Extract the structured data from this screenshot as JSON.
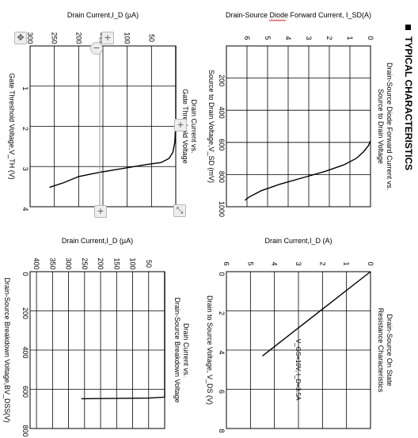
{
  "section_title": "TYPICAL CHARACTERISTICS",
  "colors": {
    "ink": "#000000",
    "grid": "#000000",
    "toolbar_bg": "#eeeeee",
    "cursor_line": "#9a9a9a",
    "squiggle": "#d23a3a"
  },
  "viewer": {
    "orientation": "rotated 90° clockwise",
    "tools": [
      {
        "id": "pan",
        "icon": "move-icon"
      },
      {
        "id": "zoom_in_top",
        "icon": "plus-icon"
      },
      {
        "id": "zoom_out_top",
        "icon": "minus-icon"
      },
      {
        "id": "zoom_in_mid",
        "icon": "plus-icon"
      },
      {
        "id": "zoom_in_bottom",
        "icon": "plus-icon"
      },
      {
        "id": "expand",
        "icon": "expand-icon"
      }
    ]
  },
  "chart_data": [
    {
      "id": "diode",
      "type": "line",
      "title": "Drain-Source Diode Forward Current vs. Source to Drain Voltage",
      "xlabel": "Source to Drain Voltage,V_SD (mV)",
      "ylabel": "Drain-Source Diode Forward Current, I_SD(A)",
      "xlim": [
        0,
        1000
      ],
      "ylim": [
        0,
        7
      ],
      "xticks": [
        200,
        400,
        600,
        800,
        1000
      ],
      "yticks": [
        0,
        1,
        2,
        3,
        4,
        5,
        6
      ],
      "grid": true,
      "series": [
        {
          "x": [
            590,
            620,
            660,
            700,
            740,
            780,
            820,
            860,
            900,
            940,
            960
          ],
          "y": [
            0.0,
            0.1,
            0.35,
            0.7,
            1.3,
            2.2,
            3.3,
            4.4,
            5.3,
            5.9,
            6.1
          ]
        }
      ]
    },
    {
      "id": "on_state",
      "type": "line",
      "title": "Drain-Source On State Resistance Characteristics",
      "xlabel": "Drain to Source Voltage, V_DS (V)",
      "ylabel": "Drain Current,I_D (A)",
      "xlim": [
        0,
        8
      ],
      "ylim": [
        0,
        6
      ],
      "xticks": [
        0,
        2,
        4,
        6,
        8
      ],
      "yticks": [
        0,
        1,
        2,
        3,
        4,
        5,
        6
      ],
      "grid": true,
      "annotation": "V_GS=10V, I_D=3.5A",
      "series": [
        {
          "x": [
            0,
            4.3
          ],
          "y": [
            0,
            4.5
          ]
        }
      ]
    },
    {
      "id": "threshold",
      "type": "line",
      "title": "Drain Current vs. Gate Threshold Voltage",
      "xlabel": "Gate Threshold Voltage,V_TH (V)",
      "ylabel": "Drain Current,I_D (µA)",
      "xlim": [
        0,
        4
      ],
      "ylim": [
        0,
        300
      ],
      "xticks": [
        1,
        2,
        3,
        4
      ],
      "yticks": [
        50,
        100,
        150,
        200,
        250,
        300
      ],
      "grid": true,
      "series": [
        {
          "x": [
            0,
            1.9,
            2.4,
            2.65,
            2.8,
            2.9,
            2.95,
            3.05,
            3.15,
            3.25,
            3.4,
            3.52
          ],
          "y": [
            0,
            0,
            2,
            6,
            14,
            30,
            60,
            110,
            160,
            200,
            230,
            260
          ]
        }
      ]
    },
    {
      "id": "breakdown",
      "type": "line",
      "title": "Drain Current vs. Drain-Source Breakdown Voltage",
      "xlabel": "Drain-Source Breakdown Voltage,BV_DSS(V)",
      "ylabel": "Drain Current,I_D (µA)",
      "xlim": [
        0,
        800
      ],
      "ylim": [
        0,
        420
      ],
      "xticks": [
        0,
        200,
        400,
        600,
        800
      ],
      "yticks": [
        50,
        100,
        150,
        200,
        250,
        300,
        350,
        400
      ],
      "grid": true,
      "series": [
        {
          "x": [
            0,
            640,
            645,
            648
          ],
          "y": [
            0,
            0,
            50,
            260
          ]
        }
      ]
    }
  ]
}
